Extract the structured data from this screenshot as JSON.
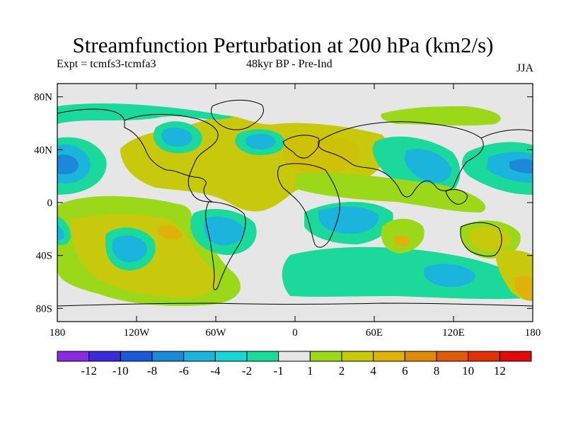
{
  "title": "Streamfunction Perturbation at 200 hPa (km2/s)",
  "subtitle_left": "Expt = tcmfs3-tcmfa3",
  "subtitle_center": "48kyr BP - Pre-Ind",
  "subtitle_right": "JJA",
  "axes": {
    "x_ticks": [
      "180",
      "120W",
      "60W",
      "0",
      "60E",
      "120E",
      "180"
    ],
    "x_values": [
      -180,
      -120,
      -60,
      0,
      60,
      120,
      180
    ],
    "y_ticks": [
      "80N",
      "40N",
      "0",
      "40S",
      "80S"
    ],
    "y_values": [
      80,
      40,
      0,
      -40,
      -80
    ],
    "lon_range": [
      -180,
      180
    ],
    "lat_range": [
      -90,
      90
    ]
  },
  "colorbar": {
    "labels": [
      "-12",
      "-10",
      "-8",
      "-6",
      "-4",
      "-2",
      "-1",
      "1",
      "2",
      "4",
      "6",
      "8",
      "10",
      "12"
    ],
    "colors": [
      "#8a2be2",
      "#3a2ad8",
      "#1a5ad8",
      "#1a8ad8",
      "#1ab4dc",
      "#18d6d6",
      "#1ad99a",
      "#e6e6e6",
      "#9cd81a",
      "#c8c80c",
      "#deb20a",
      "#e08a0a",
      "#e05a0a",
      "#e0320a",
      "#e00a0a"
    ]
  }
}
